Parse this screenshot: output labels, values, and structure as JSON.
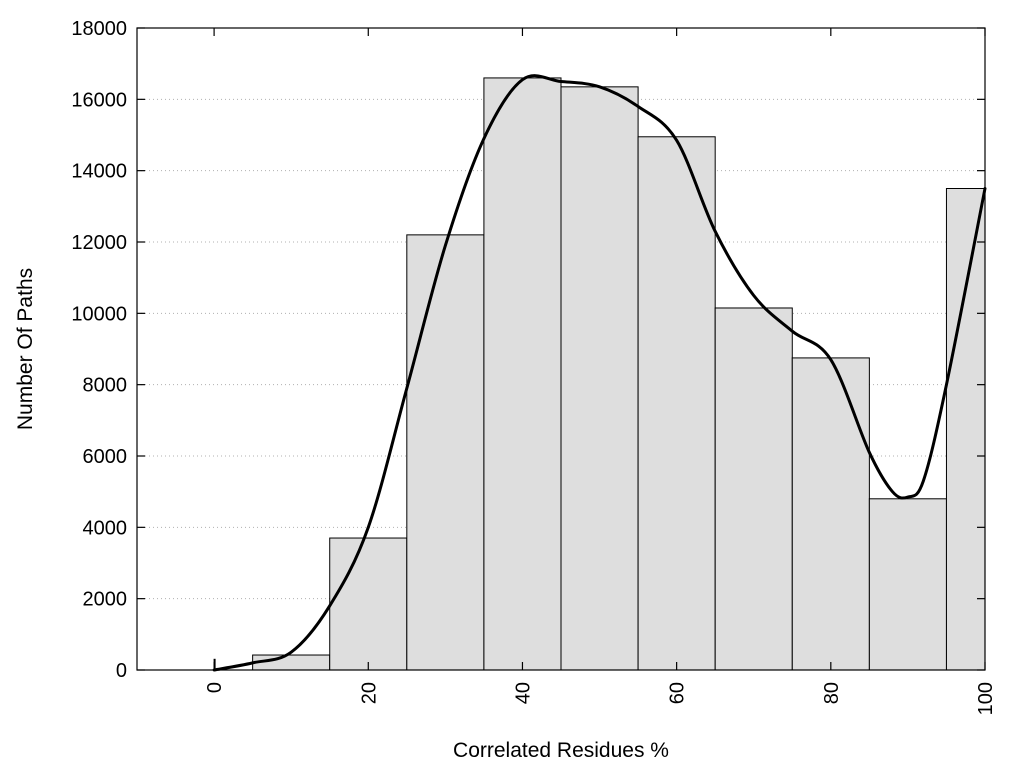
{
  "chart_data": {
    "type": "bar",
    "xlabel": "Correlated Residues %",
    "ylabel": "Number Of Paths",
    "xlim": [
      -10,
      100
    ],
    "ylim": [
      0,
      18000
    ],
    "x_ticks": [
      0,
      20,
      40,
      60,
      80,
      100
    ],
    "y_ticks": [
      0,
      2000,
      4000,
      6000,
      8000,
      10000,
      12000,
      14000,
      16000,
      18000
    ],
    "grid": "horizontal-dotted",
    "bars": [
      {
        "x0": 0,
        "x1": 0,
        "value": 300
      },
      {
        "x0": 5,
        "x1": 15,
        "value": 420
      },
      {
        "x0": 15,
        "x1": 25,
        "value": 3700
      },
      {
        "x0": 25,
        "x1": 35,
        "value": 12200
      },
      {
        "x0": 35,
        "x1": 45,
        "value": 16600
      },
      {
        "x0": 45,
        "x1": 55,
        "value": 16350
      },
      {
        "x0": 55,
        "x1": 65,
        "value": 14950
      },
      {
        "x0": 65,
        "x1": 75,
        "value": 10150
      },
      {
        "x0": 75,
        "x1": 85,
        "value": 8750
      },
      {
        "x0": 85,
        "x1": 95,
        "value": 4800
      },
      {
        "x0": 95,
        "x1": 100,
        "value": 13500
      }
    ],
    "curve": {
      "x": [
        0,
        5,
        10,
        15,
        20,
        25,
        30,
        35,
        40,
        45,
        50,
        55,
        60,
        65,
        70,
        75,
        80,
        85,
        88,
        90,
        92,
        95,
        100
      ],
      "y": [
        0,
        200,
        500,
        1800,
        4000,
        7900,
        11900,
        14900,
        16550,
        16500,
        16350,
        15800,
        14850,
        12300,
        10500,
        9500,
        8700,
        6100,
        5000,
        4850,
        5300,
        8000,
        13500
      ]
    }
  }
}
